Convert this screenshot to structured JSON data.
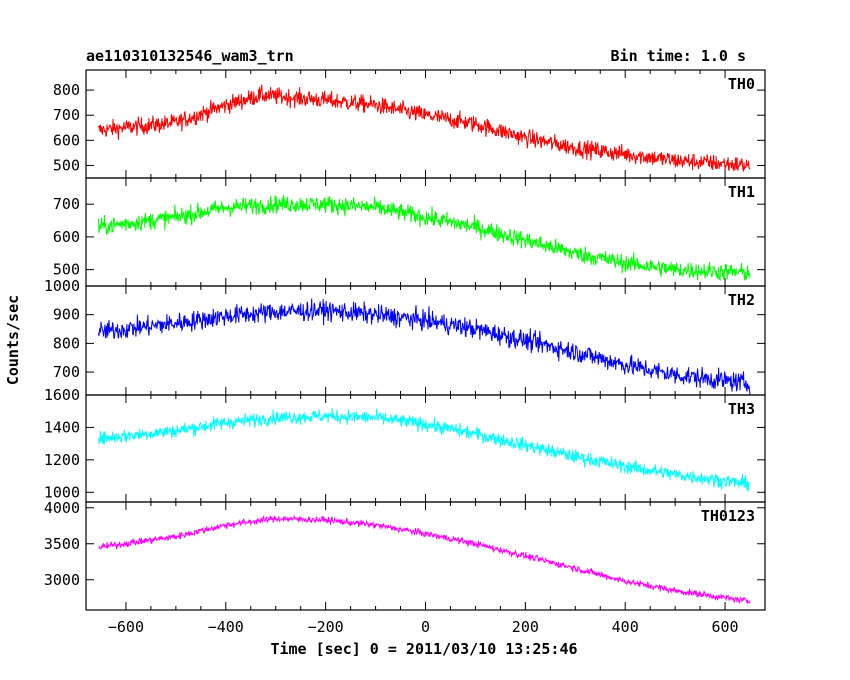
{
  "chart_data": {
    "type": "line",
    "title": "ae110310132546_wam3_trn",
    "bin_time_label": "Bin time: 1.0 s",
    "xlabel": "Time [sec] 0 = 2011/03/10 13:25:46",
    "ylabel": "Counts/sec",
    "xlim": [
      -680,
      680
    ],
    "x_ticks": [
      -600,
      -400,
      -200,
      0,
      200,
      400,
      600
    ],
    "x_tick_labels": [
      "−600",
      "−400",
      "−200",
      "0",
      "200",
      "400",
      "600"
    ],
    "x_data_range": [
      -655,
      650
    ],
    "panels": [
      {
        "name": "TH0",
        "color": "#ff0000",
        "ylim": [
          450,
          880
        ],
        "y_ticks": [
          500,
          600,
          700,
          800
        ],
        "y_tick_labels": [
          "500",
          "600",
          "700",
          "800"
        ],
        "trend": [
          [
            -655,
            640
          ],
          [
            -500,
            670
          ],
          [
            -400,
            740
          ],
          [
            -330,
            780
          ],
          [
            -200,
            760
          ],
          [
            -100,
            740
          ],
          [
            0,
            700
          ],
          [
            100,
            665
          ],
          [
            200,
            610
          ],
          [
            300,
            570
          ],
          [
            400,
            545
          ],
          [
            500,
            520
          ],
          [
            650,
            500
          ]
        ],
        "noise": 45
      },
      {
        "name": "TH1",
        "color": "#00ff00",
        "ylim": [
          450,
          780
        ],
        "y_ticks": [
          500,
          600,
          700
        ],
        "y_tick_labels": [
          "500",
          "600",
          "700"
        ],
        "trend": [
          [
            -655,
            630
          ],
          [
            -500,
            660
          ],
          [
            -400,
            690
          ],
          [
            -300,
            700
          ],
          [
            -200,
            700
          ],
          [
            -100,
            690
          ],
          [
            0,
            660
          ],
          [
            100,
            630
          ],
          [
            200,
            590
          ],
          [
            300,
            550
          ],
          [
            400,
            520
          ],
          [
            500,
            500
          ],
          [
            650,
            490
          ]
        ],
        "noise": 35
      },
      {
        "name": "TH2",
        "color": "#0000ff",
        "ylim": [
          620,
          1000
        ],
        "y_ticks": [
          700,
          800,
          900,
          1000
        ],
        "y_tick_labels": [
          "700",
          "800",
          "900",
          "1000"
        ],
        "trend": [
          [
            -655,
            840
          ],
          [
            -500,
            870
          ],
          [
            -400,
            895
          ],
          [
            -300,
            910
          ],
          [
            -200,
            915
          ],
          [
            -100,
            900
          ],
          [
            0,
            880
          ],
          [
            100,
            850
          ],
          [
            200,
            810
          ],
          [
            300,
            770
          ],
          [
            400,
            725
          ],
          [
            500,
            690
          ],
          [
            650,
            660
          ]
        ],
        "noise": 45
      },
      {
        "name": "TH3",
        "color": "#00ffff",
        "ylim": [
          940,
          1600
        ],
        "y_ticks": [
          1000,
          1200,
          1400,
          1600
        ],
        "y_tick_labels": [
          "1000",
          "1200",
          "1400",
          "1600"
        ],
        "trend": [
          [
            -655,
            1330
          ],
          [
            -500,
            1380
          ],
          [
            -400,
            1430
          ],
          [
            -300,
            1460
          ],
          [
            -200,
            1470
          ],
          [
            -100,
            1460
          ],
          [
            0,
            1420
          ],
          [
            100,
            1360
          ],
          [
            200,
            1290
          ],
          [
            300,
            1220
          ],
          [
            400,
            1160
          ],
          [
            500,
            1110
          ],
          [
            650,
            1050
          ]
        ],
        "noise": 55
      },
      {
        "name": "TH0123",
        "color": "#ff00ff",
        "ylim": [
          2580,
          4080
        ],
        "y_ticks": [
          3000,
          3500,
          4000
        ],
        "y_tick_labels": [
          "3000",
          "3500",
          "4000"
        ],
        "trend": [
          [
            -655,
            3450
          ],
          [
            -500,
            3600
          ],
          [
            -400,
            3760
          ],
          [
            -300,
            3850
          ],
          [
            -200,
            3830
          ],
          [
            -100,
            3760
          ],
          [
            0,
            3640
          ],
          [
            100,
            3500
          ],
          [
            200,
            3330
          ],
          [
            300,
            3160
          ],
          [
            400,
            2980
          ],
          [
            500,
            2850
          ],
          [
            650,
            2700
          ]
        ],
        "noise": 60
      }
    ]
  }
}
